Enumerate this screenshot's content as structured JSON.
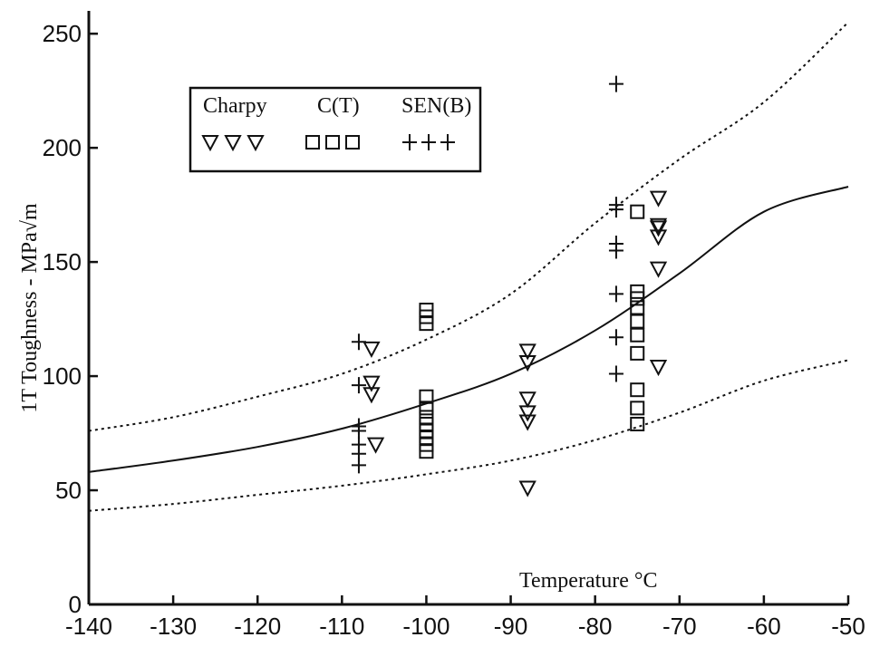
{
  "chart_data": {
    "type": "scatter",
    "title": "",
    "xlabel": "Temperature  °C",
    "ylabel": "1T  Toughness  -  MPa√m",
    "xlim": [
      -140,
      -50
    ],
    "ylim": [
      0,
      260
    ],
    "x_ticks": [
      -140,
      -130,
      -120,
      -110,
      -100,
      -90,
      -80,
      -70,
      -60,
      -50
    ],
    "y_ticks": [
      0,
      50,
      100,
      150,
      200,
      250
    ],
    "legend": {
      "placement": "top-left",
      "entries": [
        {
          "label": "Charpy",
          "marker": "triangle-down"
        },
        {
          "label": "C(T)",
          "marker": "square"
        },
        {
          "label": "SEN(B)",
          "marker": "plus"
        }
      ]
    },
    "series": [
      {
        "name": "Charpy",
        "marker": "triangle-down",
        "points": [
          [
            -106.5,
            112
          ],
          [
            -106.5,
            97
          ],
          [
            -106.5,
            92
          ],
          [
            -106,
            70
          ],
          [
            -88,
            111
          ],
          [
            -88,
            106
          ],
          [
            -88,
            90
          ],
          [
            -88,
            84
          ],
          [
            -88,
            80
          ],
          [
            -88,
            51
          ],
          [
            -72.5,
            178
          ],
          [
            -72.5,
            166
          ],
          [
            -72.5,
            165
          ],
          [
            -72.5,
            161
          ],
          [
            -72.5,
            147
          ],
          [
            -72.5,
            104
          ]
        ]
      },
      {
        "name": "C(T)",
        "marker": "square",
        "points": [
          [
            -100,
            129
          ],
          [
            -100,
            126
          ],
          [
            -100,
            123
          ],
          [
            -100,
            91
          ],
          [
            -100,
            86
          ],
          [
            -100,
            82
          ],
          [
            -100,
            79
          ],
          [
            -100,
            76
          ],
          [
            -100,
            73
          ],
          [
            -100,
            70
          ],
          [
            -100,
            67
          ],
          [
            -75,
            172
          ],
          [
            -75,
            137
          ],
          [
            -75,
            134
          ],
          [
            -75,
            130
          ],
          [
            -75,
            124
          ],
          [
            -75,
            118
          ],
          [
            -75,
            110
          ],
          [
            -75,
            94
          ],
          [
            -75,
            86
          ],
          [
            -75,
            79
          ]
        ]
      },
      {
        "name": "SEN(B)",
        "marker": "plus",
        "points": [
          [
            -108,
            115
          ],
          [
            -108,
            96
          ],
          [
            -108,
            78
          ],
          [
            -108,
            76
          ],
          [
            -108,
            70
          ],
          [
            -108,
            66
          ],
          [
            -108,
            61
          ],
          [
            -77.5,
            228
          ],
          [
            -77.5,
            175
          ],
          [
            -77.5,
            173
          ],
          [
            -77.5,
            158
          ],
          [
            -77.5,
            155
          ],
          [
            -77.5,
            136
          ],
          [
            -77.5,
            117
          ],
          [
            -77.5,
            101
          ]
        ]
      },
      {
        "name": "",
        "style": "solid",
        "marker": "none",
        "points": [
          [
            -140,
            58
          ],
          [
            -130,
            63
          ],
          [
            -120,
            69
          ],
          [
            -110,
            77
          ],
          [
            -100,
            88
          ],
          [
            -90,
            101
          ],
          [
            -80,
            120
          ],
          [
            -70,
            145
          ],
          [
            -60,
            172
          ],
          [
            -50,
            183
          ]
        ]
      },
      {
        "name": "",
        "style": "dotted",
        "marker": "none",
        "points": [
          [
            -140,
            76
          ],
          [
            -130,
            82
          ],
          [
            -120,
            91
          ],
          [
            -110,
            101
          ],
          [
            -100,
            116
          ],
          [
            -90,
            136
          ],
          [
            -80,
            167
          ],
          [
            -70,
            195
          ],
          [
            -60,
            220
          ],
          [
            -50,
            255
          ]
        ]
      },
      {
        "name": "",
        "style": "dotted",
        "marker": "none",
        "points": [
          [
            -140,
            41
          ],
          [
            -130,
            44
          ],
          [
            -120,
            48
          ],
          [
            -110,
            52
          ],
          [
            -100,
            57
          ],
          [
            -90,
            63
          ],
          [
            -80,
            72
          ],
          [
            -70,
            84
          ],
          [
            -60,
            98
          ],
          [
            -50,
            107
          ]
        ]
      }
    ],
    "grid": false
  }
}
